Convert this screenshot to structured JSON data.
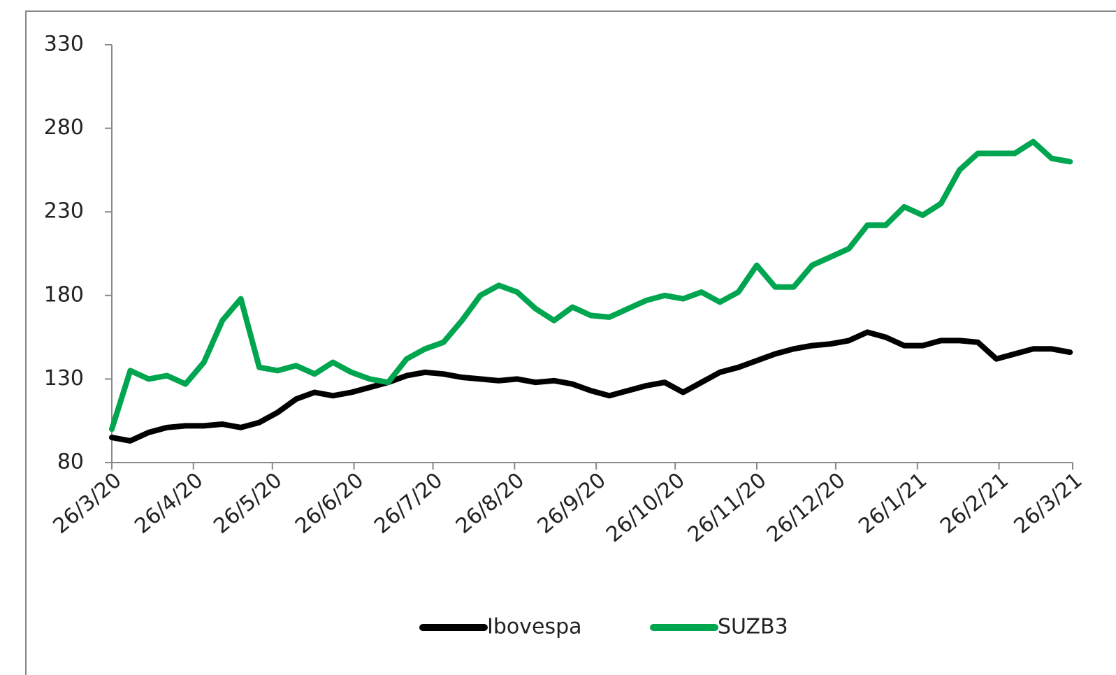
{
  "chart_data": {
    "type": "line",
    "x": [
      "2020-03-26",
      "2020-04-02",
      "2020-04-09",
      "2020-04-16",
      "2020-04-23",
      "2020-04-30",
      "2020-05-07",
      "2020-05-14",
      "2020-05-21",
      "2020-05-28",
      "2020-06-04",
      "2020-06-11",
      "2020-06-18",
      "2020-06-25",
      "2020-07-02",
      "2020-07-09",
      "2020-07-16",
      "2020-07-23",
      "2020-07-30",
      "2020-08-06",
      "2020-08-13",
      "2020-08-20",
      "2020-08-27",
      "2020-09-03",
      "2020-09-10",
      "2020-09-17",
      "2020-09-24",
      "2020-10-01",
      "2020-10-08",
      "2020-10-15",
      "2020-10-22",
      "2020-10-29",
      "2020-11-05",
      "2020-11-12",
      "2020-11-19",
      "2020-11-26",
      "2020-12-03",
      "2020-12-10",
      "2020-12-17",
      "2020-12-24",
      "2020-12-31",
      "2021-01-07",
      "2021-01-14",
      "2021-01-21",
      "2021-01-28",
      "2021-02-04",
      "2021-02-11",
      "2021-02-18",
      "2021-02-25",
      "2021-03-04",
      "2021-03-11",
      "2021-03-18",
      "2021-03-25"
    ],
    "series": [
      {
        "name": "Ibovespa",
        "color": "#000000",
        "values": [
          95,
          93,
          98,
          101,
          102,
          102,
          103,
          101,
          104,
          110,
          118,
          122,
          120,
          122,
          125,
          128,
          132,
          134,
          133,
          131,
          130,
          129,
          130,
          128,
          129,
          127,
          123,
          120,
          123,
          126,
          128,
          122,
          128,
          134,
          137,
          141,
          145,
          148,
          150,
          151,
          153,
          158,
          155,
          150,
          150,
          153,
          153,
          152,
          142,
          145,
          148,
          148,
          146
        ]
      },
      {
        "name": "SUZB3",
        "color": "#00a550",
        "values": [
          100,
          135,
          130,
          132,
          127,
          140,
          165,
          178,
          137,
          135,
          138,
          133,
          140,
          134,
          130,
          128,
          142,
          148,
          152,
          165,
          180,
          186,
          182,
          172,
          165,
          173,
          168,
          167,
          172,
          177,
          180,
          178,
          182,
          176,
          182,
          198,
          185,
          185,
          198,
          203,
          208,
          222,
          222,
          233,
          228,
          235,
          255,
          265,
          265,
          265,
          272,
          262,
          260
        ]
      }
    ],
    "xlim": [
      "2020-03-26",
      "2021-03-26"
    ],
    "xticks": [
      {
        "value": "2020-03-26",
        "label": "26/3/20"
      },
      {
        "value": "2020-04-26",
        "label": "26/4/20"
      },
      {
        "value": "2020-05-26",
        "label": "26/5/20"
      },
      {
        "value": "2020-06-26",
        "label": "26/6/20"
      },
      {
        "value": "2020-07-26",
        "label": "26/7/20"
      },
      {
        "value": "2020-08-26",
        "label": "26/8/20"
      },
      {
        "value": "2020-09-26",
        "label": "26/9/20"
      },
      {
        "value": "2020-10-26",
        "label": "26/10/20"
      },
      {
        "value": "2020-11-26",
        "label": "26/11/20"
      },
      {
        "value": "2020-12-26",
        "label": "26/12/20"
      },
      {
        "value": "2021-01-26",
        "label": "26/1/21"
      },
      {
        "value": "2021-02-26",
        "label": "26/2/21"
      },
      {
        "value": "2021-03-26",
        "label": "26/3/21"
      }
    ],
    "ylim": [
      80,
      330
    ],
    "yticks": [
      80,
      130,
      180,
      230,
      280,
      330
    ],
    "legend": "bottom"
  }
}
